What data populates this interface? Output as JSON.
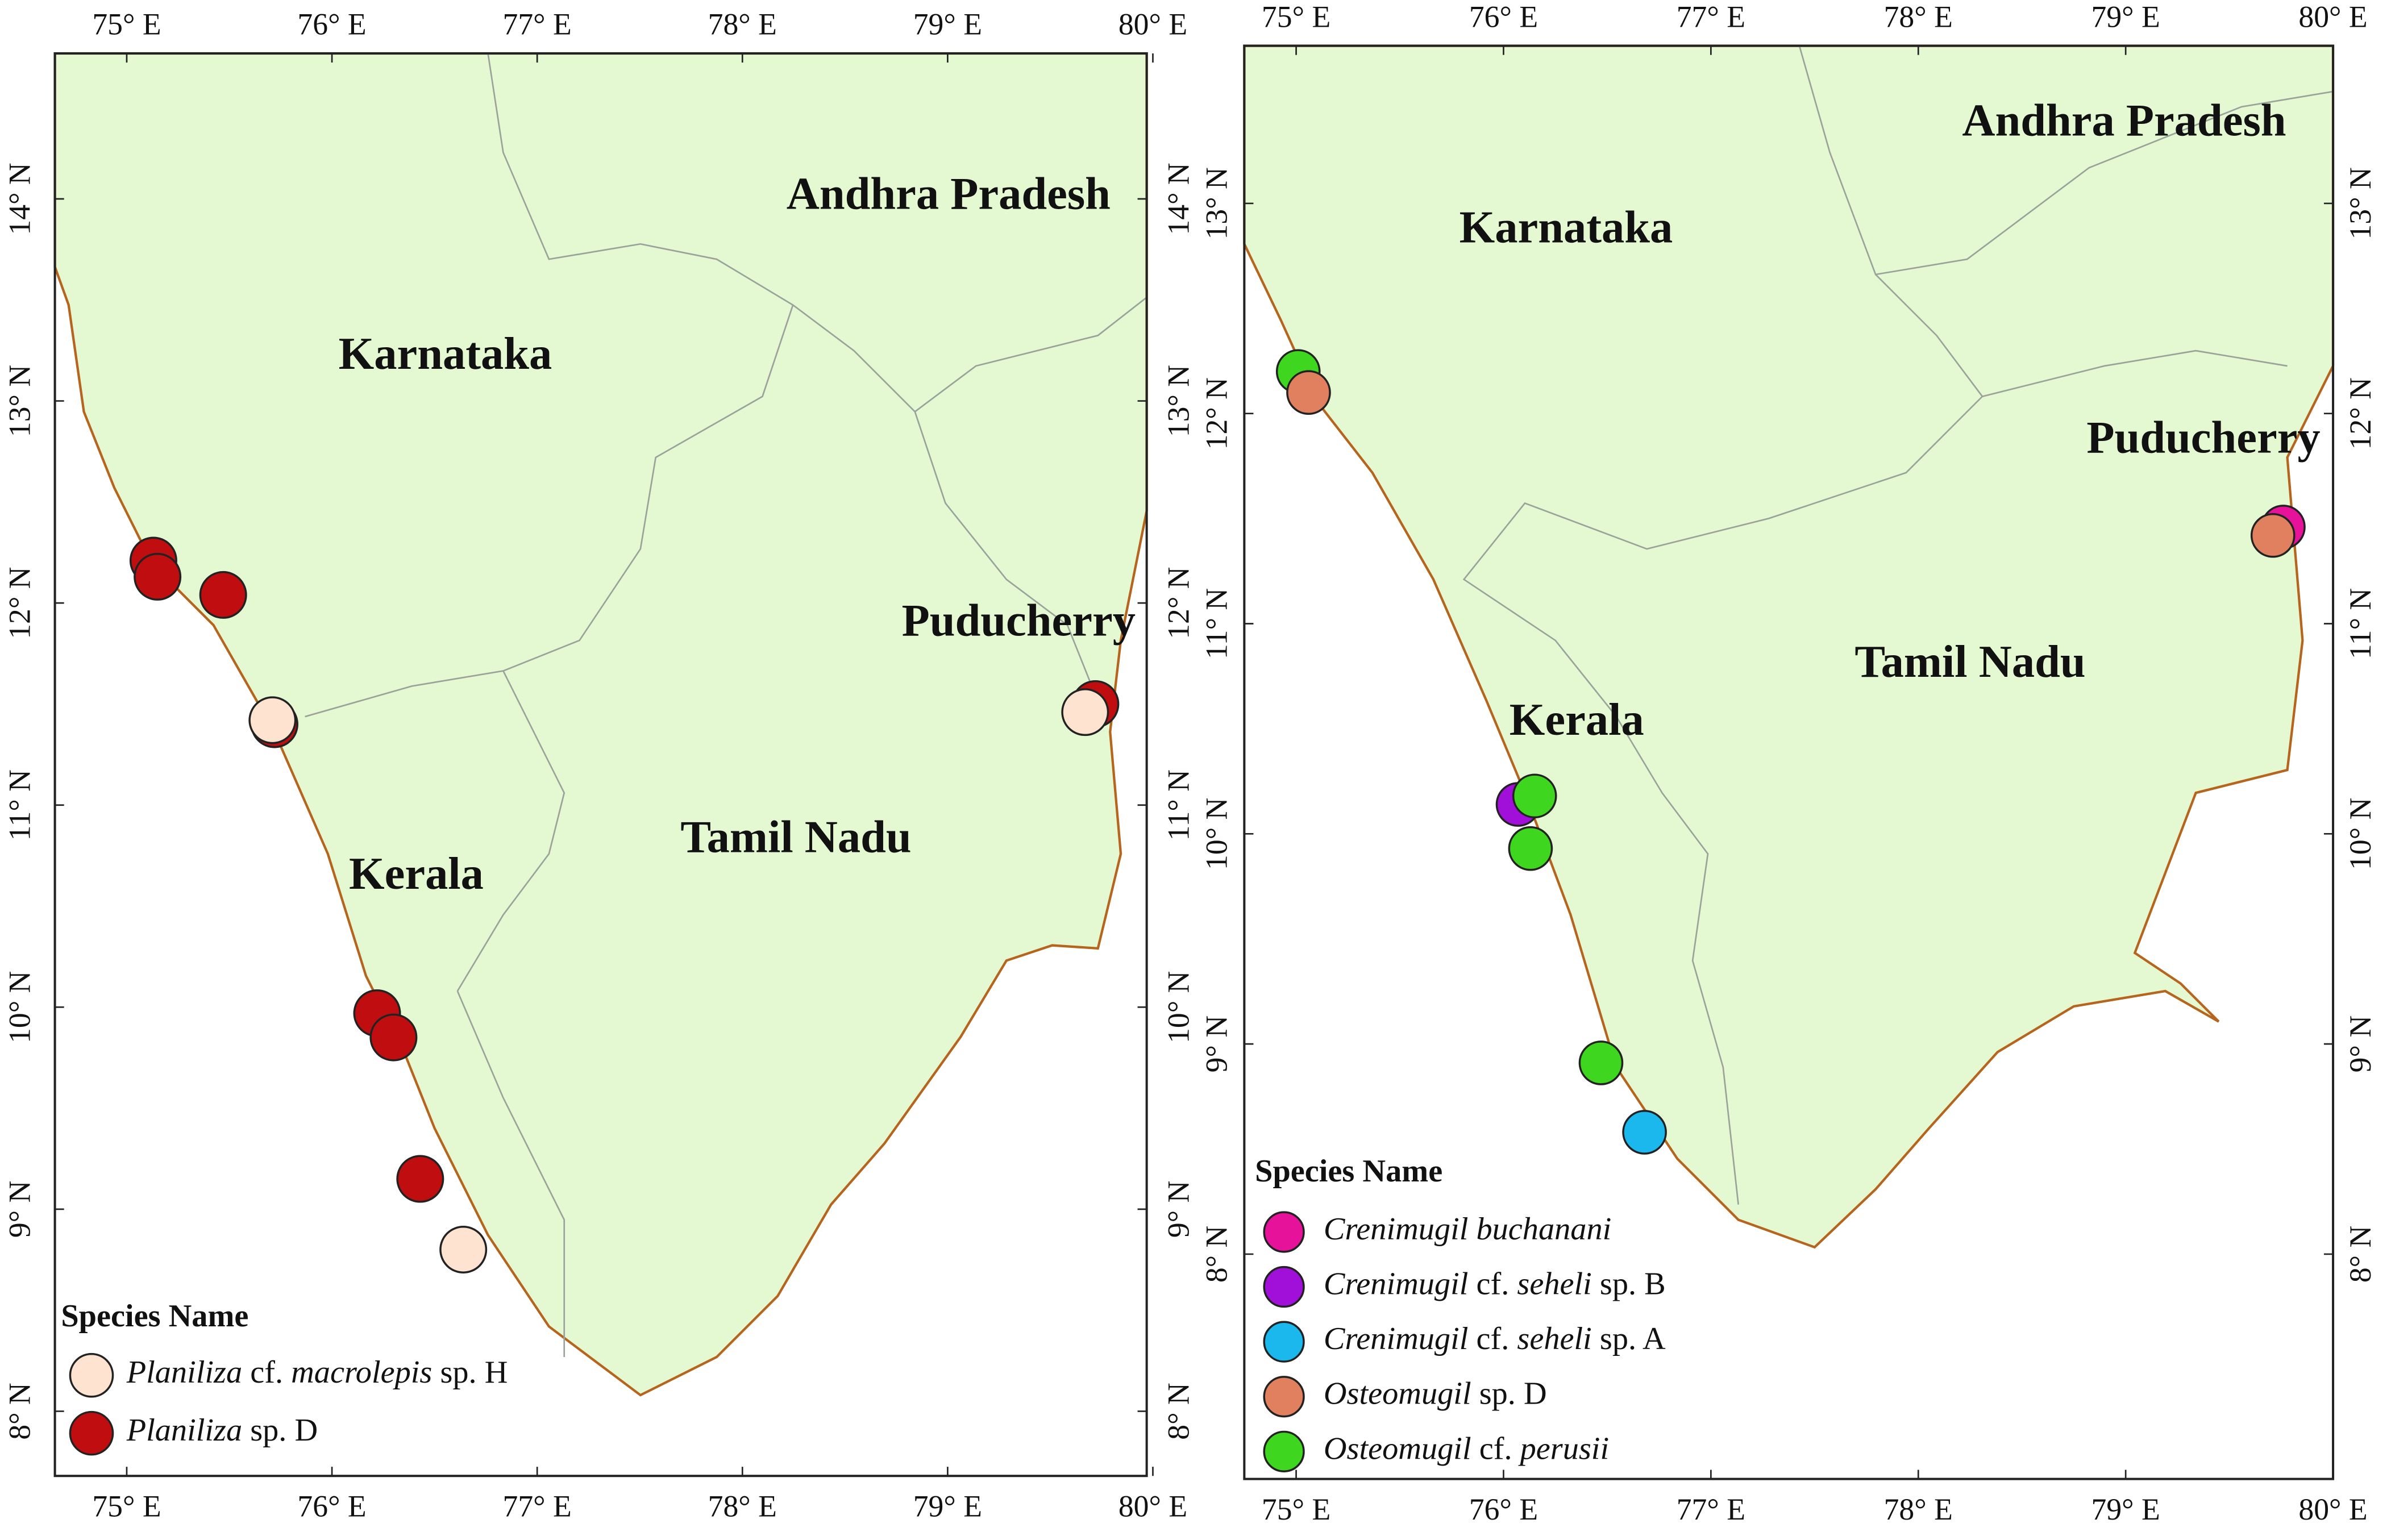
{
  "maps": [
    {
      "xlim": [
        74.65,
        79.97
      ],
      "ylim": [
        7.68,
        14.72
      ],
      "xticks": [
        {
          "value": 75,
          "label": "75° E"
        },
        {
          "value": 76,
          "label": "76° E"
        },
        {
          "value": 77,
          "label": "77° E"
        },
        {
          "value": 78,
          "label": "78° E"
        },
        {
          "value": 79,
          "label": "79° E"
        },
        {
          "value": 80,
          "label": "80° E"
        }
      ],
      "yticks": [
        {
          "value": 8,
          "label": "8° N"
        },
        {
          "value": 9,
          "label": "9° N"
        },
        {
          "value": 10,
          "label": "10° N"
        },
        {
          "value": 11,
          "label": "11° N"
        },
        {
          "value": 12,
          "label": "12° N"
        },
        {
          "value": 13,
          "label": "13° N"
        },
        {
          "value": 14,
          "label": "14° N"
        }
      ],
      "regions": [
        "Andhra Pradesh",
        "Karnataka",
        "Puducherry",
        "Tamil Nadu",
        "Kerala"
      ],
      "legend_title": "Species Name",
      "species": [
        {
          "color": "#fde3d0",
          "name_parts": [
            {
              "text": "Planiliza",
              "italic": true
            },
            {
              "text": " cf. ",
              "italic": false
            },
            {
              "text": "macrolepis",
              "italic": true
            },
            {
              "text": " sp. H",
              "italic": false
            }
          ]
        },
        {
          "color": "#c00e10",
          "name_parts": [
            {
              "text": "Planiliza",
              "italic": true
            },
            {
              "text": " sp. D",
              "italic": false
            }
          ]
        }
      ],
      "points": [
        {
          "lon": 75.13,
          "lat": 12.21,
          "species": 1
        },
        {
          "lon": 75.15,
          "lat": 12.13,
          "species": 1
        },
        {
          "lon": 75.47,
          "lat": 12.04,
          "species": 1
        },
        {
          "lon": 75.72,
          "lat": 11.4,
          "species": 1
        },
        {
          "lon": 75.71,
          "lat": 11.42,
          "species": 0
        },
        {
          "lon": 79.72,
          "lat": 11.5,
          "species": 1
        },
        {
          "lon": 79.67,
          "lat": 11.46,
          "species": 0
        },
        {
          "lon": 76.22,
          "lat": 9.97,
          "species": 1
        },
        {
          "lon": 76.3,
          "lat": 9.85,
          "species": 1
        },
        {
          "lon": 76.43,
          "lat": 9.15,
          "species": 1
        },
        {
          "lon": 76.64,
          "lat": 8.8,
          "species": 0
        }
      ]
    },
    {
      "xlim": [
        74.75,
        80.0
      ],
      "ylim": [
        6.93,
        13.75
      ],
      "xticks": [
        {
          "value": 75,
          "label": "75° E"
        },
        {
          "value": 76,
          "label": "76° E"
        },
        {
          "value": 77,
          "label": "77° E"
        },
        {
          "value": 78,
          "label": "78° E"
        },
        {
          "value": 79,
          "label": "79° E"
        },
        {
          "value": 80,
          "label": "80° E"
        }
      ],
      "yticks": [
        {
          "value": 8,
          "label": "8° N"
        },
        {
          "value": 9,
          "label": "9° N"
        },
        {
          "value": 10,
          "label": "10° N"
        },
        {
          "value": 11,
          "label": "11° N"
        },
        {
          "value": 12,
          "label": "12° N"
        },
        {
          "value": 13,
          "label": "13° N"
        }
      ],
      "regions": [
        "Andhra Pradesh",
        "Karnataka",
        "Puducherry",
        "Tamil Nadu",
        "Kerala"
      ],
      "legend_title": "Species Name",
      "species": [
        {
          "color": "#e6139a",
          "name_parts": [
            {
              "text": "Crenimugil buchanani",
              "italic": true
            }
          ]
        },
        {
          "color": "#a010d8",
          "name_parts": [
            {
              "text": "Crenimugil",
              "italic": true
            },
            {
              "text": " cf. ",
              "italic": false
            },
            {
              "text": "seheli",
              "italic": true
            },
            {
              "text": " sp. B",
              "italic": false
            }
          ]
        },
        {
          "color": "#1bb8ee",
          "name_parts": [
            {
              "text": "Crenimugil",
              "italic": true
            },
            {
              "text": " cf. ",
              "italic": false
            },
            {
              "text": "seheli",
              "italic": true
            },
            {
              "text": " sp. A",
              "italic": false
            }
          ]
        },
        {
          "color": "#e0805e",
          "name_parts": [
            {
              "text": "Osteomugil",
              "italic": true
            },
            {
              "text": " sp. D",
              "italic": false
            }
          ]
        },
        {
          "color": "#3ed61e",
          "name_parts": [
            {
              "text": "Osteomugil",
              "italic": true
            },
            {
              "text": " cf. ",
              "italic": false
            },
            {
              "text": "perusii",
              "italic": true
            }
          ]
        }
      ],
      "points": [
        {
          "lon": 75.01,
          "lat": 12.2,
          "species": 4
        },
        {
          "lon": 75.06,
          "lat": 12.1,
          "species": 3
        },
        {
          "lon": 79.76,
          "lat": 11.46,
          "species": 0
        },
        {
          "lon": 79.71,
          "lat": 11.42,
          "species": 3
        },
        {
          "lon": 76.07,
          "lat": 10.14,
          "species": 1
        },
        {
          "lon": 76.15,
          "lat": 10.18,
          "species": 4
        },
        {
          "lon": 76.13,
          "lat": 9.93,
          "species": 4
        },
        {
          "lon": 76.47,
          "lat": 8.91,
          "species": 4
        },
        {
          "lon": 76.68,
          "lat": 8.58,
          "species": 2
        }
      ]
    }
  ]
}
